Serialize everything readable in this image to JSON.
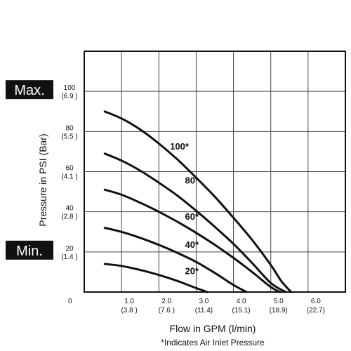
{
  "chart_data": {
    "type": "line",
    "xlabel": "Flow in GPM (l/min)",
    "ylabel": "Pressure in PSI (Bar)",
    "note": "*Indicates Air Inlet Pressure",
    "xlim": [
      0,
      7
    ],
    "ylim": [
      0,
      120
    ],
    "grid": true,
    "origin_label": "0",
    "x_ticks": [
      {
        "value": 1.0,
        "label": "1.0",
        "sublabel": "(3.8 )"
      },
      {
        "value": 2.0,
        "label": "2.0",
        "sublabel": "(7.6 )"
      },
      {
        "value": 3.0,
        "label": "3.0",
        "sublabel": "(11.4)"
      },
      {
        "value": 4.0,
        "label": "4.0",
        "sublabel": "(15.1)"
      },
      {
        "value": 5.0,
        "label": "5.0",
        "sublabel": "(18.9)"
      },
      {
        "value": 6.0,
        "label": "6.0",
        "sublabel": "(22.7)"
      }
    ],
    "y_ticks": [
      {
        "value": 20,
        "label": "20",
        "sublabel": "(1.4 )"
      },
      {
        "value": 40,
        "label": "40",
        "sublabel": "(2.8 )"
      },
      {
        "value": 60,
        "label": "60",
        "sublabel": "(4.1 )"
      },
      {
        "value": 80,
        "label": "80",
        "sublabel": "(5.5 )"
      },
      {
        "value": 100,
        "label": "100",
        "sublabel": "(6.9 )"
      }
    ],
    "markers": [
      {
        "label": "Max.",
        "y": 100
      },
      {
        "label": "Min.",
        "y": 20
      }
    ],
    "series": [
      {
        "name": "100*",
        "label_at": [
          2.3,
          71
        ],
        "x": [
          0.55,
          1.0,
          1.5,
          2.0,
          2.5,
          3.0,
          3.5,
          4.0,
          4.5,
          5.0,
          5.3,
          5.55
        ],
        "y": [
          90,
          86.5,
          81,
          74,
          66,
          57,
          47.5,
          37,
          26,
          13.5,
          5,
          0
        ]
      },
      {
        "name": "80*",
        "label_at": [
          2.7,
          54
        ],
        "x": [
          0.55,
          1.0,
          1.5,
          2.0,
          2.5,
          3.0,
          3.5,
          4.0,
          4.5,
          5.0,
          5.4
        ],
        "y": [
          69,
          65.5,
          60.5,
          54.5,
          48,
          40.5,
          32.5,
          24,
          14.5,
          4.5,
          0
        ]
      },
      {
        "name": "60*",
        "label_at": [
          2.7,
          36
        ],
        "x": [
          0.55,
          1.0,
          1.5,
          2.0,
          2.5,
          3.0,
          3.5,
          4.0,
          4.5,
          5.0,
          5.25
        ],
        "y": [
          51,
          48.5,
          44.5,
          40,
          35,
          29.5,
          23.5,
          17,
          10,
          2.5,
          0
        ]
      },
      {
        "name": "40*",
        "label_at": [
          2.7,
          22
        ],
        "x": [
          0.55,
          1.0,
          1.5,
          2.0,
          2.5,
          3.0,
          3.5,
          4.0,
          4.35
        ],
        "y": [
          32,
          30,
          27,
          23.5,
          19.5,
          15,
          9.5,
          3.5,
          0
        ]
      },
      {
        "name": "20*",
        "label_at": [
          2.7,
          9
        ],
        "x": [
          0.55,
          1.0,
          1.5,
          2.0,
          2.5,
          3.0,
          3.3
        ],
        "y": [
          14,
          13,
          11,
          8.5,
          5.5,
          2,
          0
        ]
      }
    ]
  }
}
